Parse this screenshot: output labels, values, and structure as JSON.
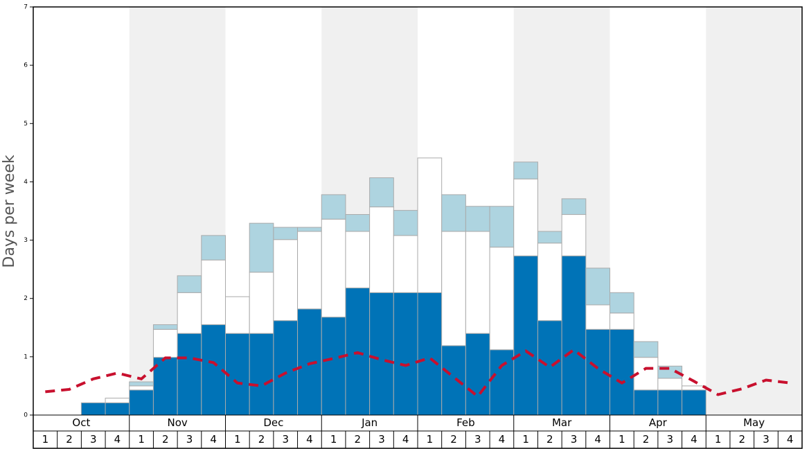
{
  "chart_data": {
    "type": "bar",
    "stacked": true,
    "y_label": "Days per week",
    "months": [
      "Oct",
      "Nov",
      "Dec",
      "Jan",
      "Feb",
      "Mar",
      "Apr",
      "May"
    ],
    "categories": [
      "1",
      "2",
      "3",
      "4",
      "1",
      "2",
      "3",
      "4",
      "1",
      "2",
      "3",
      "4",
      "1",
      "2",
      "3",
      "4",
      "1",
      "2",
      "3",
      "4",
      "1",
      "2",
      "3",
      "4",
      "1",
      "2",
      "3",
      "4",
      "1",
      "2",
      "3",
      "4"
    ],
    "ylim": [
      0,
      7
    ],
    "yticks": [
      0,
      1,
      2,
      3,
      4,
      5,
      6,
      7
    ],
    "series": [
      {
        "color": "#0073b7",
        "values": [
          null,
          null,
          0.21,
          0.21,
          0.43,
          0.99,
          1.4,
          1.55,
          1.4,
          1.4,
          1.62,
          1.82,
          1.68,
          2.18,
          2.1,
          2.1,
          2.1,
          1.19,
          1.4,
          1.12,
          2.73,
          1.62,
          2.73,
          1.47,
          1.47,
          0.43,
          0.43,
          0.43,
          null,
          null,
          null,
          null
        ]
      },
      {
        "color": "#ffffff",
        "values": [
          null,
          null,
          null,
          0.08,
          0.07,
          0.48,
          0.7,
          1.11,
          0.63,
          1.05,
          1.39,
          1.33,
          1.68,
          0.97,
          1.47,
          0.98,
          2.31,
          1.96,
          1.75,
          1.76,
          1.32,
          1.33,
          0.71,
          0.42,
          0.28,
          0.56,
          0.2,
          0.07,
          null,
          null,
          null,
          null
        ]
      },
      {
        "color": "#aed4e0",
        "values": [
          null,
          null,
          null,
          null,
          0.07,
          0.08,
          0.29,
          0.42,
          null,
          0.84,
          0.21,
          0.07,
          0.42,
          0.29,
          0.5,
          0.43,
          null,
          0.63,
          0.43,
          0.7,
          0.29,
          0.2,
          0.27,
          0.63,
          0.35,
          0.27,
          0.21,
          null,
          null,
          null,
          null,
          null
        ]
      }
    ],
    "line": {
      "color": "#c8102e",
      "dashed": true,
      "values": [
        0.4,
        0.44,
        0.62,
        0.72,
        0.62,
        0.98,
        0.98,
        0.9,
        0.55,
        0.5,
        0.72,
        0.88,
        0.97,
        1.07,
        0.95,
        0.85,
        0.98,
        0.65,
        0.32,
        0.85,
        1.1,
        0.82,
        1.12,
        0.8,
        0.55,
        0.8,
        0.8,
        0.58,
        0.35,
        0.45,
        0.6,
        0.55
      ]
    },
    "shaded_month_color": "#f0f0f0"
  }
}
